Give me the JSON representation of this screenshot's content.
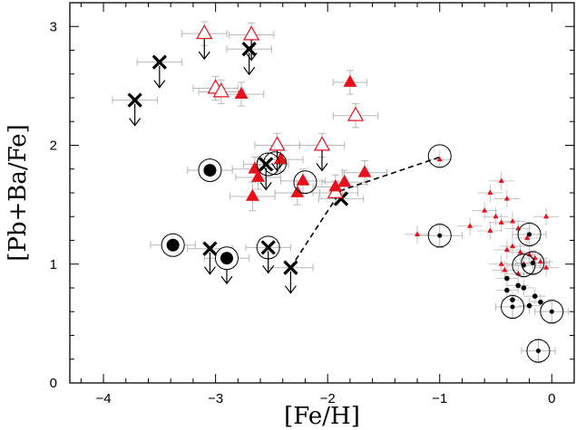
{
  "chart_data": {
    "type": "scatter",
    "xlabel": "[Fe/H]",
    "ylabel": "[Pb+Ba/Fe]",
    "xlim": [
      -4.3,
      0.2
    ],
    "ylim": [
      0,
      3.2
    ],
    "xticks": [
      -4,
      -3,
      -2,
      -1,
      0
    ],
    "yticks": [
      0,
      1,
      2,
      3
    ],
    "grid": false,
    "colors": {
      "red": "#e8101a",
      "black": "#000000",
      "error_bar": "#b8b8b8"
    },
    "series": [
      {
        "marker": "cross",
        "color": "#000000",
        "points": [
          {
            "x": -3.72,
            "y": 2.38,
            "xerr": 0.2,
            "upper_limit": true
          },
          {
            "x": -3.5,
            "y": 2.7,
            "xerr": 0.2,
            "upper_limit": true
          },
          {
            "x": -2.7,
            "y": 2.81,
            "xerr": 0.2,
            "upper_limit": true
          },
          {
            "x": -3.05,
            "y": 1.13,
            "xerr": 0.2,
            "upper_limit": true
          },
          {
            "x": -2.53,
            "y": 1.14,
            "xerr": 0.2,
            "upper_limit": true
          },
          {
            "x": -2.33,
            "y": 0.97,
            "xerr": 0.2,
            "upper_limit": true
          },
          {
            "x": -2.55,
            "y": 1.84,
            "xerr": 0.2,
            "upper_limit": true
          },
          {
            "x": -1.88,
            "y": 1.55,
            "xerr": 0.2,
            "upper_limit": false
          }
        ]
      },
      {
        "marker": "open-triangle",
        "color": "#e8101a",
        "points": [
          {
            "x": -3.1,
            "y": 2.94,
            "xerr": 0.2,
            "yerr": 0.1,
            "upper_limit": true
          },
          {
            "x": -2.68,
            "y": 2.93,
            "xerr": 0.2,
            "yerr": 0.1,
            "upper_limit": true
          },
          {
            "x": -3.0,
            "y": 2.48,
            "xerr": 0.2,
            "yerr": 0.1,
            "upper_limit": false
          },
          {
            "x": -2.95,
            "y": 2.45,
            "xerr": 0.2,
            "yerr": 0.1,
            "upper_limit": false
          },
          {
            "x": -2.45,
            "y": 2.0,
            "xerr": 0.2,
            "yerr": 0.1,
            "upper_limit": true
          },
          {
            "x": -2.05,
            "y": 2.0,
            "xerr": 0.2,
            "yerr": 0.1,
            "upper_limit": true
          },
          {
            "x": -1.75,
            "y": 2.25,
            "xerr": 0.2,
            "yerr": 0.1,
            "upper_limit": false
          },
          {
            "x": -1.93,
            "y": 1.6,
            "xerr": 0.2,
            "yerr": 0.1,
            "upper_limit": false
          }
        ]
      },
      {
        "marker": "filled-triangle",
        "color": "#e8101a",
        "points": [
          {
            "x": -2.77,
            "y": 2.43,
            "xerr": 0.2,
            "yerr": 0.1
          },
          {
            "x": -1.8,
            "y": 2.53,
            "xerr": 0.15,
            "yerr": 0.1
          },
          {
            "x": -2.65,
            "y": 1.8,
            "xerr": 0.2,
            "yerr": 0.1
          },
          {
            "x": -2.62,
            "y": 1.73,
            "xerr": 0.2,
            "yerr": 0.1
          },
          {
            "x": -2.42,
            "y": 1.88,
            "xerr": 0.2,
            "yerr": 0.1
          },
          {
            "x": -2.22,
            "y": 1.7,
            "xerr": 0.2,
            "yerr": 0.1
          },
          {
            "x": -2.67,
            "y": 1.57,
            "xerr": 0.2,
            "yerr": 0.12
          },
          {
            "x": -2.27,
            "y": 1.6,
            "xerr": 0.2,
            "yerr": 0.1
          },
          {
            "x": -1.93,
            "y": 1.65,
            "xerr": 0.2,
            "yerr": 0.1
          },
          {
            "x": -1.85,
            "y": 1.69,
            "xerr": 0.2,
            "yerr": 0.1
          },
          {
            "x": -1.67,
            "y": 1.77,
            "xerr": 0.2,
            "yerr": 0.1
          }
        ]
      },
      {
        "marker": "small-triangle",
        "color": "#e8101a",
        "points": [
          {
            "x": -1.0,
            "y": 1.88
          },
          {
            "x": -1.2,
            "y": 1.25
          },
          {
            "x": -0.73,
            "y": 1.32
          },
          {
            "x": -0.45,
            "y": 1.7
          },
          {
            "x": -0.55,
            "y": 1.6
          },
          {
            "x": -0.4,
            "y": 1.55
          },
          {
            "x": -0.6,
            "y": 1.45
          },
          {
            "x": -0.5,
            "y": 1.4
          },
          {
            "x": -0.35,
            "y": 1.36
          },
          {
            "x": -0.45,
            "y": 1.35
          },
          {
            "x": -0.3,
            "y": 1.3
          },
          {
            "x": -0.55,
            "y": 1.28
          },
          {
            "x": -0.22,
            "y": 1.22
          },
          {
            "x": -0.05,
            "y": 1.4
          },
          {
            "x": -0.35,
            "y": 1.15
          },
          {
            "x": -0.4,
            "y": 1.12
          },
          {
            "x": -0.28,
            "y": 1.1
          },
          {
            "x": -0.2,
            "y": 1.08
          },
          {
            "x": -0.15,
            "y": 1.05
          },
          {
            "x": -0.45,
            "y": 1.0
          },
          {
            "x": -0.25,
            "y": 1.0
          },
          {
            "x": -0.1,
            "y": 1.02
          },
          {
            "x": -0.42,
            "y": 0.95
          },
          {
            "x": -0.05,
            "y": 0.97
          },
          {
            "x": -0.3,
            "y": 0.92
          }
        ]
      },
      {
        "marker": "big-circled-dot",
        "color": "#000000",
        "points": [
          {
            "x": -3.38,
            "y": 1.16,
            "xerr": 0.2
          },
          {
            "x": -3.05,
            "y": 1.79,
            "xerr": 0.2
          },
          {
            "x": -2.9,
            "y": 1.05,
            "xerr": 0.2,
            "upper_limit": true
          }
        ]
      },
      {
        "marker": "small-circled-dot",
        "color": "#000000",
        "points": [
          {
            "x": -1.0,
            "y": 1.24,
            "xerr": 0.2,
            "yerr": 0.1
          },
          {
            "x": -0.2,
            "y": 1.25,
            "xerr": 0.15,
            "yerr": 0.1
          },
          {
            "x": -0.17,
            "y": 1.01,
            "xerr": 0.15,
            "yerr": 0.1
          },
          {
            "x": -0.25,
            "y": 0.99,
            "xerr": 0.15,
            "yerr": 0.1
          },
          {
            "x": -0.35,
            "y": 0.64,
            "xerr": 0.15,
            "yerr": 0.1
          },
          {
            "x": 0.0,
            "y": 0.6,
            "xerr": 0.15,
            "yerr": 0.1
          },
          {
            "x": -0.12,
            "y": 0.27,
            "xerr": 0.15,
            "yerr": 0.1
          }
        ]
      },
      {
        "marker": "dot",
        "color": "#000000",
        "points": [
          {
            "x": -0.4,
            "y": 0.88
          },
          {
            "x": -0.3,
            "y": 0.82
          },
          {
            "x": -0.25,
            "y": 0.8
          },
          {
            "x": -0.4,
            "y": 0.78
          },
          {
            "x": -0.15,
            "y": 0.73
          },
          {
            "x": -0.35,
            "y": 0.7
          },
          {
            "x": -0.1,
            "y": 0.68
          },
          {
            "x": -0.2,
            "y": 0.65
          }
        ]
      },
      {
        "marker": "open-circle",
        "color": "#000000",
        "points": [
          {
            "x": -2.53,
            "y": 1.84
          },
          {
            "x": -2.47,
            "y": 1.85
          },
          {
            "x": -2.2,
            "y": 1.69
          },
          {
            "x": -2.53,
            "y": 1.14
          },
          {
            "x": -1.0,
            "y": 1.91
          }
        ]
      }
    ],
    "trend_line": {
      "style": "dashed",
      "color": "#000000",
      "x": [
        -2.33,
        -1.88,
        -1.0
      ],
      "y": [
        0.97,
        1.62,
        1.9
      ]
    }
  }
}
